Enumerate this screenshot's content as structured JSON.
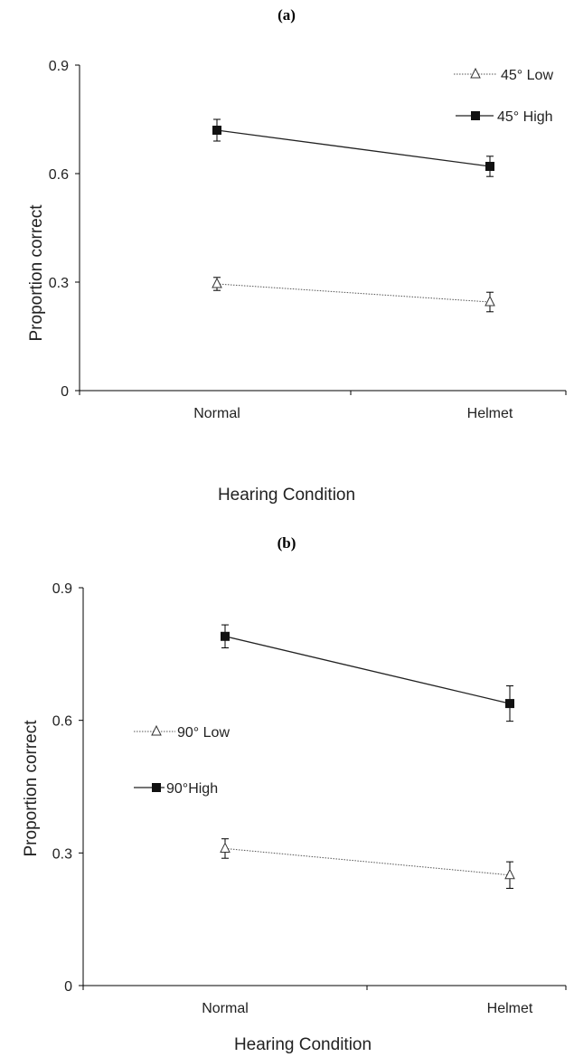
{
  "chart_data": [
    {
      "panel": "(a)",
      "type": "line",
      "categories": [
        "Normal",
        "Helmet"
      ],
      "xlabel": "Hearing Condition",
      "ylabel": "Proportion correct",
      "ylim": [
        0,
        0.9
      ],
      "yticks": [
        "0",
        "0.3",
        "0.6",
        "0.9"
      ],
      "legend_position": "top-right",
      "series": [
        {
          "name": "45° Low",
          "marker": "open-triangle",
          "line": "dotted",
          "values": [
            0.295,
            0.245
          ],
          "error": [
            0.018,
            0.027
          ]
        },
        {
          "name": "45° High",
          "marker": "filled-square",
          "line": "solid",
          "values": [
            0.72,
            0.62
          ],
          "error": [
            0.03,
            0.028
          ]
        }
      ]
    },
    {
      "panel": "(b)",
      "type": "line",
      "categories": [
        "Normal",
        "Helmet"
      ],
      "xlabel": "Hearing Condition",
      "ylabel": "Proportion correct",
      "ylim": [
        0,
        0.9
      ],
      "yticks": [
        "0",
        "0.3",
        "0.6",
        "0.9"
      ],
      "legend_position": "middle-left",
      "series": [
        {
          "name": "90° Low",
          "marker": "open-triangle",
          "line": "dotted",
          "values": [
            0.31,
            0.25
          ],
          "error": [
            0.022,
            0.03
          ]
        },
        {
          "name": "90°High",
          "marker": "filled-square",
          "line": "solid",
          "values": [
            0.79,
            0.638
          ],
          "error": [
            0.026,
            0.04
          ]
        }
      ]
    }
  ]
}
